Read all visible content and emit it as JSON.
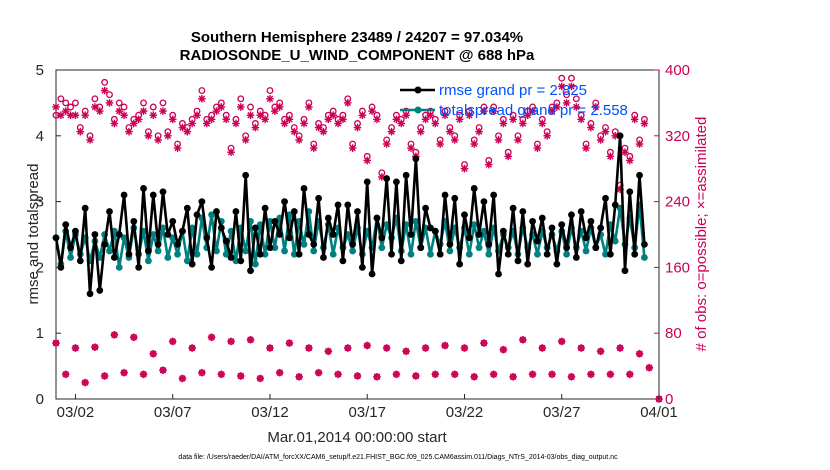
{
  "chart_data": {
    "type": "line",
    "title": "Southern Hemisphere 23489 / 24207 = 97.034%",
    "subtitle": "RADIOSONDE_U_WIND_COMPONENT @ 688 hPa",
    "xlabel": "Mar.01,2014 00:00:00 start",
    "ylabel": "rmse and totalspread",
    "y2label": "# of obs: o=possible; ×=assimilated",
    "xlim": [
      1,
      32
    ],
    "ylim": [
      0,
      5
    ],
    "y2lim": [
      0,
      400
    ],
    "xticks": [
      {
        "x": 2,
        "label": "03/02"
      },
      {
        "x": 7,
        "label": "03/07"
      },
      {
        "x": 12,
        "label": "03/12"
      },
      {
        "x": 17,
        "label": "03/17"
      },
      {
        "x": 22,
        "label": "03/22"
      },
      {
        "x": 27,
        "label": "03/27"
      },
      {
        "x": 32,
        "label": "04/01"
      }
    ],
    "yticks": [
      "0",
      "1",
      "2",
      "3",
      "4",
      "5"
    ],
    "y2ticks": [
      "0",
      "80",
      "160",
      "240",
      "320",
      "400"
    ],
    "colors": {
      "rmse": "#000000",
      "spread": "#008080",
      "obs": "#cc0055"
    },
    "x": [
      1.0,
      1.25,
      1.5,
      1.75,
      2.0,
      2.25,
      2.5,
      2.75,
      3.0,
      3.25,
      3.5,
      3.75,
      4.0,
      4.25,
      4.5,
      4.75,
      5.0,
      5.25,
      5.5,
      5.75,
      6.0,
      6.25,
      6.5,
      6.75,
      7.0,
      7.25,
      7.5,
      7.75,
      8.0,
      8.25,
      8.5,
      8.75,
      9.0,
      9.25,
      9.5,
      9.75,
      10.0,
      10.25,
      10.5,
      10.75,
      11.0,
      11.25,
      11.5,
      11.75,
      12.0,
      12.25,
      12.5,
      12.75,
      13.0,
      13.25,
      13.5,
      13.75,
      14.0,
      14.25,
      14.5,
      14.75,
      15.0,
      15.25,
      15.5,
      15.75,
      16.0,
      16.25,
      16.5,
      16.75,
      17.0,
      17.25,
      17.5,
      17.75,
      18.0,
      18.25,
      18.5,
      18.75,
      19.0,
      19.25,
      19.5,
      19.75,
      20.0,
      20.25,
      20.5,
      20.75,
      21.0,
      21.25,
      21.5,
      21.75,
      22.0,
      22.25,
      22.5,
      22.75,
      23.0,
      23.25,
      23.5,
      23.75,
      24.0,
      24.25,
      24.5,
      24.75,
      25.0,
      25.25,
      25.5,
      25.75,
      26.0,
      26.25,
      26.5,
      26.75,
      27.0,
      27.25,
      27.5,
      27.75,
      28.0,
      28.25,
      28.5,
      28.75,
      29.0,
      29.25,
      29.5,
      29.75,
      30.0,
      30.25,
      30.5,
      30.75,
      31.0,
      31.25
    ],
    "series": [
      {
        "name": "rmse grand pr = 2.825",
        "marker": "o-",
        "color": "#000000",
        "values": [
          2.45,
          2.0,
          2.65,
          2.3,
          2.55,
          2.1,
          2.9,
          1.6,
          2.5,
          1.65,
          2.35,
          2.85,
          2.15,
          2.5,
          3.1,
          2.2,
          2.7,
          2.0,
          3.2,
          2.25,
          3.1,
          2.35,
          3.15,
          2.5,
          2.7,
          2.35,
          2.55,
          2.9,
          2.05,
          2.8,
          3.0,
          2.45,
          2.0,
          2.85,
          2.6,
          2.4,
          2.15,
          2.85,
          2.1,
          3.4,
          1.95,
          2.6,
          2.2,
          2.9,
          2.3,
          2.7,
          2.5,
          3.0,
          2.45,
          2.85,
          2.2,
          3.2,
          2.5,
          2.35,
          3.05,
          2.15,
          2.75,
          2.5,
          2.95,
          2.1,
          2.95,
          2.35,
          2.85,
          2.0,
          3.3,
          1.9,
          2.75,
          2.45,
          3.35,
          2.2,
          3.3,
          2.1,
          3.4,
          2.5,
          3.65,
          2.3,
          2.9,
          2.6,
          2.55,
          2.2,
          3.1,
          2.35,
          3.05,
          2.05,
          2.8,
          2.45,
          3.2,
          2.5,
          3.0,
          2.35,
          3.1,
          1.9,
          2.55,
          2.2,
          2.9,
          2.1,
          2.85,
          2.05,
          2.7,
          2.4,
          2.75,
          2.2,
          2.6,
          2.05,
          2.65,
          2.3,
          2.8,
          2.15,
          2.85,
          2.45,
          2.7,
          2.3,
          2.6,
          3.05,
          2.2,
          2.95,
          4.0,
          1.95,
          3.15,
          2.2,
          3.4,
          2.35
        ]
      },
      {
        "name": "totalspread grand pr = 2.558",
        "marker": "o-",
        "color": "#008080",
        "values": [
          2.45,
          2.05,
          2.55,
          2.15,
          2.5,
          2.2,
          2.45,
          2.1,
          2.4,
          2.15,
          2.5,
          2.25,
          2.55,
          2.0,
          2.45,
          2.15,
          2.6,
          2.2,
          2.55,
          2.1,
          2.5,
          2.25,
          2.6,
          2.15,
          2.45,
          2.2,
          2.55,
          2.1,
          2.6,
          2.2,
          2.75,
          2.3,
          2.8,
          2.25,
          2.7,
          2.2,
          2.55,
          2.1,
          2.6,
          2.25,
          2.7,
          2.05,
          2.65,
          2.2,
          2.7,
          2.3,
          2.75,
          2.25,
          2.8,
          2.2,
          2.7,
          2.35,
          2.85,
          2.25,
          2.7,
          2.3,
          2.65,
          2.2,
          2.6,
          2.3,
          2.5,
          2.25,
          2.6,
          2.2,
          2.55,
          2.3,
          2.75,
          2.3,
          2.65,
          2.45,
          2.75,
          2.25,
          2.65,
          2.2,
          2.7,
          2.3,
          2.6,
          2.2,
          2.55,
          2.35,
          2.7,
          2.25,
          2.6,
          2.3,
          2.6,
          2.2,
          2.65,
          2.3,
          2.55,
          2.2,
          2.6,
          2.25,
          2.5,
          2.3,
          2.55,
          2.2,
          2.6,
          2.3,
          2.5,
          2.2,
          2.55,
          2.3,
          2.5,
          2.25,
          2.55,
          2.2,
          2.6,
          2.3,
          2.55,
          2.25,
          2.6,
          2.3,
          2.5,
          2.2,
          2.65,
          2.4,
          2.9,
          2.35,
          2.75,
          2.3,
          2.95,
          2.15
        ]
      }
    ],
    "obs_possible": [
      345,
      365,
      360,
      355,
      360,
      330,
      350,
      320,
      365,
      355,
      385,
      370,
      340,
      360,
      355,
      330,
      340,
      345,
      360,
      325,
      355,
      320,
      360,
      325,
      345,
      310,
      335,
      330,
      340,
      350,
      375,
      340,
      345,
      355,
      360,
      345,
      305,
      340,
      365,
      320,
      355,
      335,
      350,
      345,
      375,
      355,
      360,
      340,
      345,
      330,
      320,
      340,
      360,
      310,
      335,
      330,
      345,
      350,
      340,
      345,
      365,
      310,
      335,
      350,
      295,
      355,
      345,
      275,
      315,
      330,
      345,
      340,
      350,
      310,
      300,
      330,
      345,
      350,
      340,
      315,
      350,
      330,
      320,
      345,
      285,
      350,
      315,
      330,
      355,
      290,
      355,
      320,
      340,
      300,
      345,
      320,
      340,
      350,
      355,
      310,
      340,
      325,
      355,
      360,
      390,
      370,
      390,
      365,
      345,
      310,
      335,
      360,
      320,
      330,
      300,
      325,
      260,
      305,
      295,
      345,
      315,
      340
    ],
    "obs_assimilated": [
      355,
      345,
      350,
      345,
      345,
      325,
      345,
      315,
      355,
      350,
      375,
      360,
      335,
      350,
      345,
      325,
      335,
      340,
      350,
      320,
      345,
      315,
      350,
      320,
      340,
      305,
      330,
      325,
      335,
      345,
      365,
      335,
      340,
      350,
      355,
      340,
      300,
      335,
      355,
      315,
      345,
      330,
      345,
      340,
      365,
      350,
      355,
      335,
      340,
      325,
      315,
      335,
      355,
      305,
      330,
      325,
      340,
      345,
      335,
      340,
      360,
      305,
      330,
      345,
      290,
      350,
      340,
      270,
      310,
      325,
      340,
      335,
      345,
      305,
      295,
      325,
      340,
      345,
      335,
      310,
      345,
      325,
      315,
      340,
      280,
      345,
      310,
      325,
      350,
      285,
      350,
      315,
      335,
      295,
      340,
      315,
      335,
      345,
      350,
      305,
      335,
      320,
      350,
      355,
      380,
      360,
      380,
      355,
      340,
      305,
      330,
      355,
      315,
      325,
      295,
      320,
      255,
      300,
      290,
      340,
      310,
      335
    ],
    "obs_low_x": [
      1.0,
      1.5,
      2.0,
      2.5,
      3.0,
      3.5,
      4.0,
      4.5,
      5.0,
      5.5,
      6.0,
      6.5,
      7.0,
      7.5,
      8.0,
      8.5,
      9.0,
      9.5,
      10.0,
      10.5,
      11.0,
      11.5,
      12.0,
      12.5,
      13.0,
      13.5,
      14.0,
      14.5,
      15.0,
      15.5,
      16.0,
      16.5,
      17.0,
      17.5,
      18.0,
      18.5,
      19.0,
      19.5,
      20.0,
      20.5,
      21.0,
      21.5,
      22.0,
      22.5,
      23.0,
      23.5,
      24.0,
      24.5,
      25.0,
      25.5,
      26.0,
      26.5,
      27.0,
      27.5,
      28.0,
      28.5,
      29.0,
      29.5,
      30.0,
      30.5,
      31.0,
      31.5,
      32.0
    ],
    "obs_low": [
      68,
      30,
      62,
      20,
      63,
      28,
      78,
      32,
      75,
      30,
      55,
      35,
      70,
      25,
      62,
      32,
      75,
      30,
      70,
      28,
      72,
      25,
      62,
      32,
      68,
      27,
      62,
      32,
      58,
      30,
      62,
      28,
      65,
      27,
      62,
      30,
      58,
      28,
      62,
      30,
      65,
      30,
      62,
      27,
      68,
      30,
      60,
      27,
      72,
      30,
      62,
      30,
      70,
      27,
      62,
      30,
      58,
      30,
      62,
      30,
      55,
      38,
      0
    ]
  }
}
